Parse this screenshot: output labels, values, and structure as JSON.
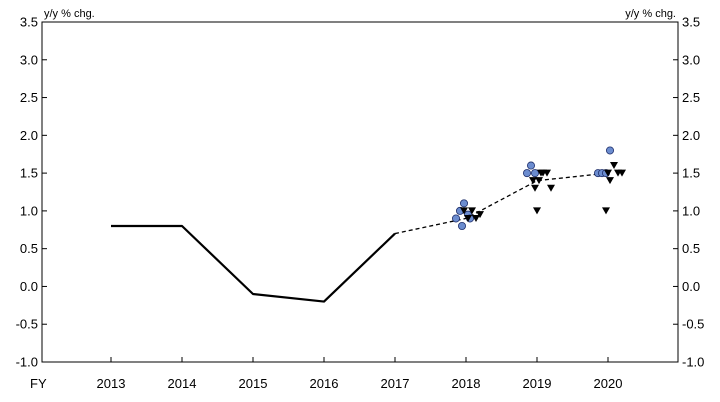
{
  "chart_data": {
    "type": "line",
    "fy_label": "FY",
    "y_unit_left": "y/y % chg.",
    "y_unit_right": "y/y % chg.",
    "categories": [
      "2013",
      "2014",
      "2015",
      "2016",
      "2017",
      "2018",
      "2019",
      "2020"
    ],
    "ylim": [
      -1.0,
      3.5
    ],
    "yticks": [
      "3.5",
      "3.0",
      "2.5",
      "2.0",
      "1.5",
      "1.0",
      "0.5",
      "0.0",
      "-0.5",
      "-1.0"
    ],
    "ytick_values": [
      3.5,
      3.0,
      2.5,
      2.0,
      1.5,
      1.0,
      0.5,
      0.0,
      -0.5,
      -1.0
    ],
    "grid": false,
    "series": [
      {
        "style": "solid",
        "x": [
          "2013",
          "2014",
          "2015",
          "2016",
          "2017"
        ],
        "values": [
          0.8,
          0.8,
          -0.1,
          -0.2,
          0.7
        ]
      },
      {
        "style": "dashed",
        "x": [
          "2017",
          "2018",
          "2019",
          "2020"
        ],
        "values": [
          0.7,
          0.9,
          1.4,
          1.5
        ]
      }
    ],
    "circle_points": [
      {
        "x": "2018",
        "values": [
          0.9,
          1.0,
          1.1,
          0.95,
          0.8,
          0.9
        ]
      },
      {
        "x": "2019",
        "values": [
          1.5,
          1.6,
          1.5
        ]
      },
      {
        "x": "2020",
        "values": [
          1.5,
          1.5,
          1.5,
          1.8
        ]
      }
    ],
    "triangle_points": [
      {
        "x": "2018",
        "values": [
          1.0,
          0.9,
          1.0,
          0.9,
          0.95
        ]
      },
      {
        "x": "2019",
        "values": [
          1.5,
          1.4,
          1.3,
          1.5,
          1.3,
          1.0,
          1.4,
          1.5
        ]
      },
      {
        "x": "2020",
        "values": [
          1.6,
          1.4,
          1.0,
          1.5,
          1.5,
          1.5
        ]
      }
    ],
    "colors": {
      "line": "#000000",
      "circle_fill": "#6b8ccf",
      "circle_stroke": "#1f2f6b",
      "triangle_fill": "#000000"
    }
  }
}
